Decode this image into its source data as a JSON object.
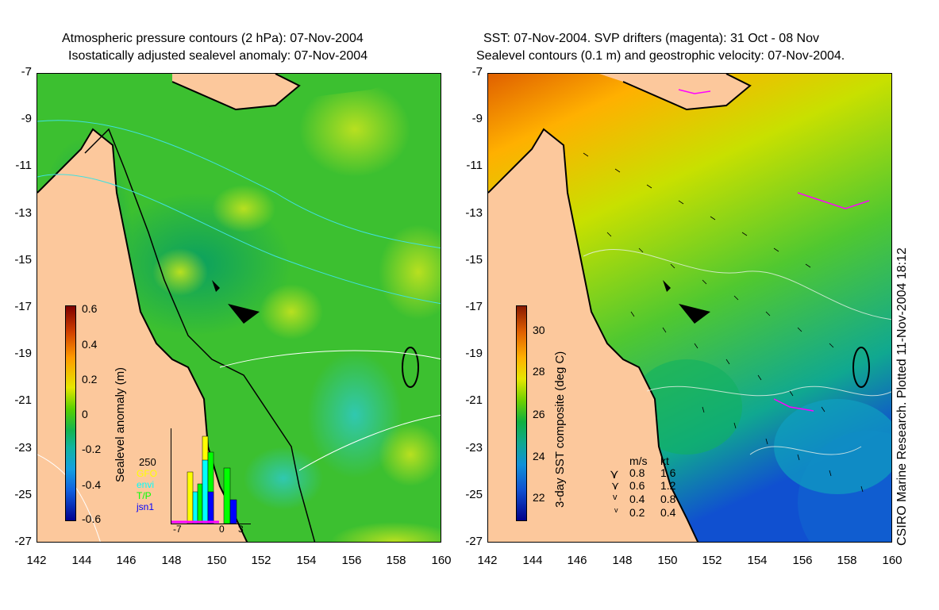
{
  "left_panel": {
    "title_line1": "Atmospheric pressure contours (2 hPa): 07-Nov-2004",
    "title_line2": "Isostatically adjusted sealevel anomaly: 07-Nov-2004",
    "colorbar": {
      "label": "Sealevel anomaly (m)",
      "ticks": [
        "0.6",
        "0.4",
        "0.2",
        "0",
        "-0.2",
        "-0.4",
        "-0.6"
      ],
      "colors": [
        "#7f0000",
        "#d04000",
        "#ff9a00",
        "#e6e600",
        "#58d000",
        "#12b450",
        "#10b4a0",
        "#14a0e0",
        "#1060e0",
        "#000090"
      ]
    },
    "inset": {
      "ymax_label": "250",
      "legend": [
        "GFO",
        "envi",
        "T/P",
        "jsn1"
      ],
      "legend_colors": [
        "#ffff00",
        "#00ffff",
        "#00ff00",
        "#0000ff"
      ],
      "x_ticks": [
        "-7",
        "0",
        "3"
      ]
    }
  },
  "right_panel": {
    "title_line1": "SST: 07-Nov-2004. SVP drifters (magenta): 31 Oct - 08 Nov",
    "title_line2": "Sealevel contours (0.1 m) and geostrophic velocity: 07-Nov-2004.",
    "colorbar": {
      "label": "3-day SST composite (deg C)",
      "ticks": [
        "30",
        "28",
        "26",
        "24",
        "22"
      ],
      "colors": [
        "#8a1a00",
        "#e06000",
        "#ffb000",
        "#e6e600",
        "#70d000",
        "#10b040",
        "#10a890",
        "#1090d8",
        "#1050d0",
        "#00008a"
      ]
    },
    "velocity_legend": {
      "header_ms": "m/s",
      "header_kt": "kt",
      "rows": [
        {
          "ms": "0.8",
          "kt": "1.6"
        },
        {
          "ms": "0.6",
          "kt": "1.2"
        },
        {
          "ms": "0.4",
          "kt": "0.8"
        },
        {
          "ms": "0.2",
          "kt": "0.4"
        }
      ]
    },
    "credit": "CSIRO Marine Research. Plotted 11-Nov-2004 18:12"
  },
  "axes": {
    "y_ticks": [
      "-7",
      "-9",
      "-11",
      "-13",
      "-15",
      "-17",
      "-19",
      "-21",
      "-23",
      "-25",
      "-27"
    ],
    "x_ticks": [
      "142",
      "144",
      "146",
      "148",
      "150",
      "152",
      "154",
      "156",
      "158",
      "160"
    ]
  },
  "colors": {
    "land": "#fcc89c",
    "coast": "#000000",
    "pressure_contour": "#40e0e0",
    "drifter": "#ff00ff"
  }
}
